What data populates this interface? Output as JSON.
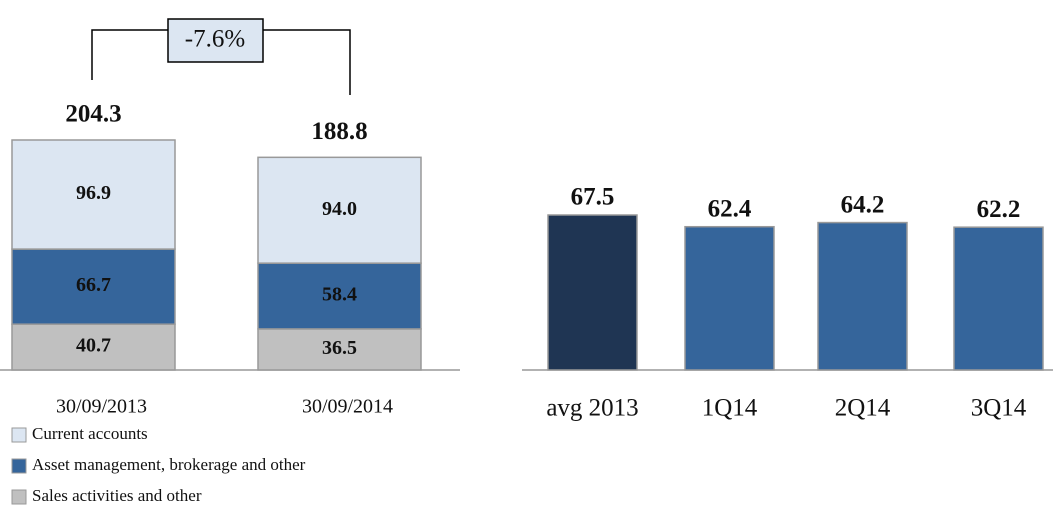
{
  "chart_data": [
    {
      "type": "stacked_bar",
      "categories": [
        "30/09/2013",
        "30/09/2014"
      ],
      "series": [
        {
          "name": "Current accounts",
          "color": "#dce6f2",
          "values": [
            96.9,
            94.0
          ],
          "value_labels": [
            "96.9",
            "94.0"
          ]
        },
        {
          "name": "Asset management, brokerage and other",
          "color": "#35659b",
          "values": [
            66.7,
            58.4
          ]
        },
        {
          "name": "Sales activities  and other",
          "color": "#c0c0c0",
          "values": [
            40.7,
            36.5
          ]
        }
      ],
      "totals": [
        204.3,
        188.8
      ],
      "annotation": "-7.6%"
    },
    {
      "type": "bar",
      "categories": [
        "avg 2013",
        "1Q14",
        "2Q14",
        "3Q14"
      ],
      "values": [
        67.5,
        62.4,
        64.2,
        62.2
      ],
      "colors": [
        "#1f3553",
        "#35659b",
        "#35659b",
        "#35659b"
      ]
    }
  ]
}
